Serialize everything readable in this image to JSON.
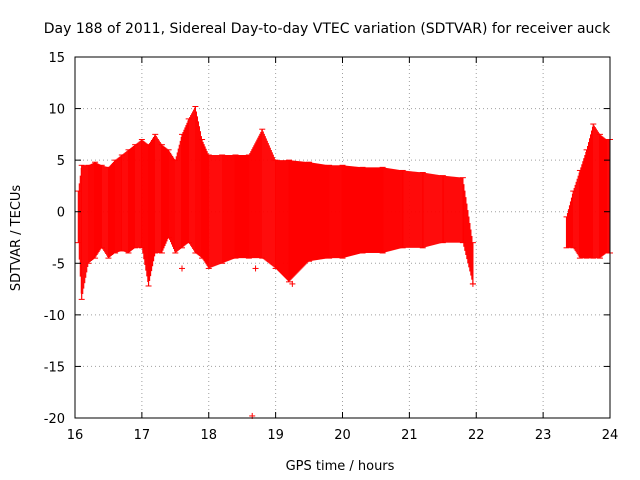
{
  "chart_data": {
    "type": "scatter",
    "title": "Day 188 of 2011, Sidereal Day-to-day VTEC variation (SDTVAR) for receiver auck",
    "xlabel": "GPS time / hours",
    "ylabel": "SDTVAR / TECUs",
    "xlim": [
      16,
      24
    ],
    "ylim": [
      -20,
      15
    ],
    "xticks": [
      16,
      17,
      18,
      19,
      20,
      21,
      22,
      23,
      24
    ],
    "yticks": [
      -20,
      -15,
      -10,
      -5,
      0,
      5,
      10,
      15
    ],
    "xtick_labels": [
      "16",
      "17",
      "18",
      "19",
      "20",
      "21",
      "22",
      "23",
      "24"
    ],
    "ytick_labels": [
      "-20",
      "-15",
      "-10",
      "-5",
      "0",
      "5",
      "10",
      "15"
    ],
    "grid": true,
    "series": [
      {
        "name": "SDTVAR",
        "color": "#ff0000",
        "marker": "+",
        "x": [
          16.05,
          16.1,
          16.2,
          16.3,
          16.4,
          16.5,
          16.6,
          16.7,
          16.8,
          16.9,
          17.0,
          17.1,
          17.2,
          17.3,
          17.4,
          17.5,
          17.6,
          17.7,
          17.8,
          17.9,
          18.0,
          18.2,
          18.4,
          18.6,
          18.8,
          19.0,
          19.2,
          19.5,
          19.8,
          20.0,
          20.3,
          20.6,
          20.9,
          21.2,
          21.5,
          21.8,
          21.95,
          23.35,
          23.45,
          23.55,
          23.65,
          23.75,
          23.85,
          23.95,
          24.0
        ],
        "ymin": [
          -3.0,
          -8.5,
          -5.0,
          -4.5,
          -3.5,
          -4.5,
          -4.0,
          -3.8,
          -4.0,
          -3.5,
          -3.5,
          -7.2,
          -4.0,
          -4.0,
          -2.5,
          -4.0,
          -3.5,
          -3.0,
          -4.0,
          -4.5,
          -5.5,
          -5.0,
          -4.5,
          -4.5,
          -4.5,
          -5.5,
          -6.8,
          -4.8,
          -4.5,
          -4.5,
          -4.0,
          -4.0,
          -3.5,
          -3.5,
          -3.0,
          -3.0,
          -7.0,
          -3.5,
          -3.5,
          -4.5,
          -4.5,
          -4.5,
          -4.5,
          -4.0,
          -4.0
        ],
        "ymax": [
          2.0,
          4.5,
          4.5,
          4.8,
          4.5,
          4.3,
          5.0,
          5.5,
          6.0,
          6.5,
          7.0,
          6.5,
          7.5,
          6.5,
          6.0,
          5.0,
          7.5,
          9.0,
          10.2,
          7.0,
          5.5,
          5.5,
          5.5,
          5.5,
          8.0,
          5.0,
          5.0,
          4.8,
          4.5,
          4.5,
          4.3,
          4.3,
          4.0,
          3.8,
          3.5,
          3.3,
          -3.0,
          -0.5,
          2.0,
          4.0,
          6.0,
          8.5,
          7.5,
          7.0,
          7.0
        ]
      }
    ],
    "outliers": [
      {
        "x": 18.65,
        "y": -19.8
      },
      {
        "x": 18.7,
        "y": -5.5
      },
      {
        "x": 19.25,
        "y": -7.0
      },
      {
        "x": 17.6,
        "y": -5.5
      },
      {
        "x": 21.95,
        "y": -7.0
      }
    ]
  }
}
